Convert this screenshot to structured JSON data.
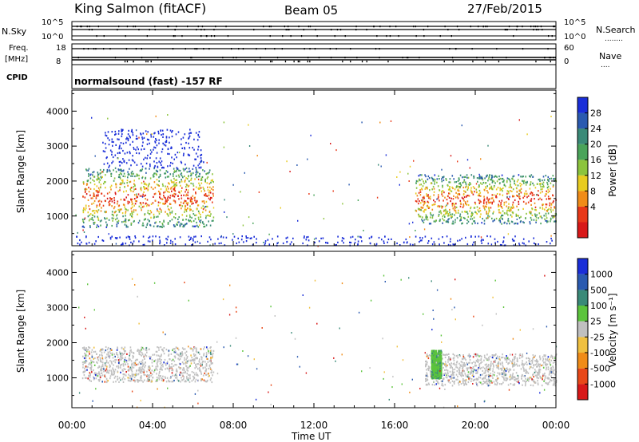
{
  "header": {
    "station": "King Salmon (fitACF)",
    "beam": "Beam 05",
    "date": "27/Feb/2015"
  },
  "status_panel": {
    "left_labels": {
      "nsky": "N.Sky",
      "freq_line1": "Freq.",
      "freq_line2": "[MHz]",
      "cpid": "CPID"
    },
    "right_labels": {
      "nsearch": "N.Search",
      "nsearch_dots": "........",
      "nave": "Nave",
      "nave_dots": "...."
    },
    "nsky_ticks": [
      "10^5",
      "10^0"
    ],
    "nsearch_ticks": [
      "10^5",
      "10^0"
    ],
    "freq_ticks": [
      "18",
      "8"
    ],
    "nave_ticks": [
      "60",
      "0"
    ],
    "cpid_text": "normalsound (fast) -157 RF"
  },
  "chart_data": [
    {
      "type": "heatmap",
      "panel": "power",
      "ylabel": "Slant Range [km]",
      "ylim": [
        150,
        4600
      ],
      "yticks": [
        1000,
        2000,
        3000,
        4000
      ],
      "xlim_hours": [
        0,
        24
      ],
      "colorbar": {
        "label": "Power [dB]",
        "ticks": [
          "28",
          "24",
          "20",
          "16",
          "12",
          "8",
          "4"
        ],
        "colors": [
          "#1a2ed8",
          "#2a5ab0",
          "#3a8a78",
          "#4aa45a",
          "#8cc43c",
          "#e8cc20",
          "#f08c18",
          "#e83818",
          "#d81818"
        ]
      },
      "regions": [
        {
          "t": [
            0.5,
            7.0
          ],
          "r": [
            700,
            2400
          ],
          "level": "high"
        },
        {
          "t": [
            1.5,
            6.5
          ],
          "r": [
            2400,
            3500
          ],
          "level": "low"
        },
        {
          "t": [
            17.0,
            24.0
          ],
          "r": [
            800,
            2200
          ],
          "level": "high"
        },
        {
          "t": [
            0,
            24
          ],
          "r": [
            180,
            450
          ],
          "level": "low"
        }
      ]
    },
    {
      "type": "heatmap",
      "panel": "velocity",
      "ylabel": "Slant Range [km]",
      "ylim": [
        150,
        4600
      ],
      "yticks": [
        1000,
        2000,
        3000,
        4000
      ],
      "xlim_hours": [
        0,
        24
      ],
      "colorbar": {
        "label": "Velocity [m s⁻¹]",
        "ticks": [
          "1000",
          "500",
          "100",
          "25",
          "-25",
          "-100",
          "-500",
          "-1000"
        ],
        "colors": [
          "#1a2ed8",
          "#2a5ab0",
          "#3a8a78",
          "#5cc43c",
          "#c0c0c0",
          "#f0c040",
          "#f08c18",
          "#e84818",
          "#d81818"
        ]
      },
      "regions": [
        {
          "t": [
            0.5,
            7.0
          ],
          "r": [
            900,
            1900
          ],
          "level": "ground"
        },
        {
          "t": [
            17.5,
            24.0
          ],
          "r": [
            800,
            1700
          ],
          "level": "ground"
        },
        {
          "t": [
            17.8,
            18.3
          ],
          "r": [
            1000,
            1800
          ],
          "level": "positive"
        }
      ]
    }
  ],
  "x_axis": {
    "ticks": [
      "00:00",
      "04:00",
      "08:00",
      "12:00",
      "16:00",
      "20:00",
      "00:00"
    ],
    "label": "Time UT"
  }
}
